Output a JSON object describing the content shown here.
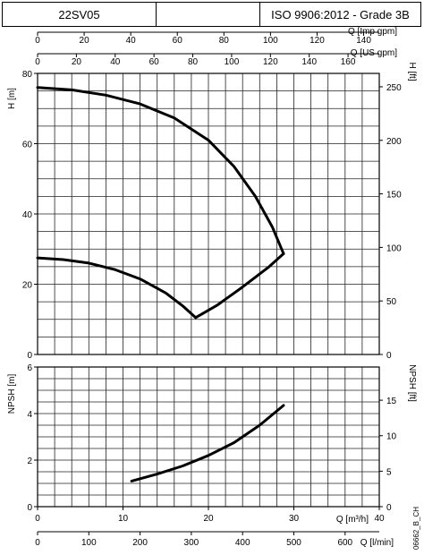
{
  "header": {
    "model": "22SV05",
    "middle": "",
    "standard": "ISO 9906:2012 - Grade 3B"
  },
  "drawing_code": "06662_B_CH",
  "chart_data": [
    {
      "type": "line",
      "title": "",
      "xlabel": "Q [m³/h]",
      "ylabel": "H [m]",
      "xlim": [
        0,
        40
      ],
      "ylim": [
        0,
        80
      ],
      "grid": true,
      "secondary_axes": {
        "top1": {
          "label": "Q [Imp gpm]",
          "ticks": [
            0,
            20,
            40,
            60,
            80,
            100,
            120,
            140
          ],
          "lim": [
            0,
            146.7
          ]
        },
        "top2": {
          "label": "Q [US gpm]",
          "ticks": [
            0,
            20,
            40,
            60,
            80,
            100,
            120,
            140,
            160
          ],
          "lim": [
            0,
            176.1
          ]
        },
        "right": {
          "label": "H [ft]",
          "ticks": [
            0,
            50,
            100,
            150,
            200,
            250
          ],
          "lim": [
            0,
            262.5
          ]
        }
      },
      "x_ticks": [
        0,
        10,
        20,
        30,
        40
      ],
      "y_ticks": [
        0,
        20,
        40,
        60,
        80
      ],
      "series": [
        {
          "name": "",
          "x": [
            0,
            4,
            8,
            12,
            16,
            20,
            23,
            25.5,
            27.5,
            28.8
          ],
          "y": [
            76,
            75.3,
            73.8,
            71.3,
            67.3,
            61,
            53.5,
            45,
            36.2,
            28.7
          ]
        },
        {
          "name": "",
          "x": [
            0,
            3,
            6,
            9,
            12,
            15,
            17,
            18.5
          ],
          "y": [
            27.5,
            27,
            26,
            24.2,
            21.5,
            17.5,
            13.8,
            10.5
          ]
        },
        {
          "name": "",
          "x": [
            18.5,
            21,
            24,
            27,
            28.8
          ],
          "y": [
            10.5,
            14,
            19.2,
            24.8,
            28.7
          ]
        }
      ]
    },
    {
      "type": "line",
      "title": "",
      "xlabel": "Q [m³/h]",
      "ylabel": "NPSH [m]",
      "xlim": [
        0,
        40
      ],
      "ylim": [
        0,
        6
      ],
      "grid": true,
      "secondary_axes": {
        "bottom": {
          "label": "Q [l/min]",
          "ticks": [
            0,
            100,
            200,
            300,
            400,
            500,
            600
          ],
          "lim": [
            0,
            666.7
          ]
        },
        "right": {
          "label": "NPSH [ft]",
          "ticks": [
            0,
            5,
            10,
            15
          ],
          "lim": [
            0,
            19.68
          ]
        }
      },
      "x_ticks": [
        0,
        10,
        20,
        30,
        40
      ],
      "y_ticks": [
        0,
        2,
        4,
        6
      ],
      "series": [
        {
          "name": "",
          "x": [
            11,
            14,
            17,
            20,
            23,
            26,
            28.8
          ],
          "y": [
            1.1,
            1.4,
            1.75,
            2.2,
            2.75,
            3.5,
            4.35
          ]
        }
      ]
    }
  ]
}
